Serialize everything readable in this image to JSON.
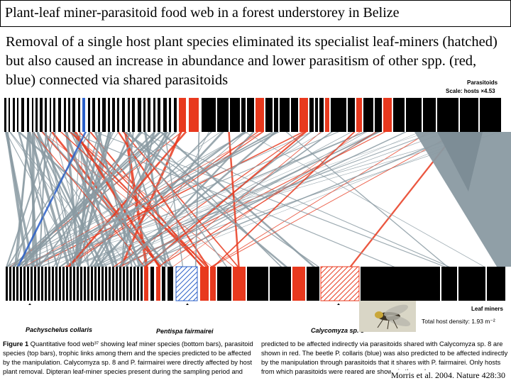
{
  "title": "Plant-leaf miner-parasitoid food web in a forest understorey in Belize",
  "subtitle": "Removal of a single host plant species eliminated its specialist leaf-miners (hatched) but also caused an increase in abundance and lower parasitism of other spp. (red, blue) connected via shared parasitoids",
  "figure": {
    "parasitoids_label": "Parasitoids",
    "scale_label": "Scale: hosts ×4.53",
    "leaf_miners_label": "Leaf miners",
    "density_label": "Total host density: 1.93 m⁻²",
    "species": [
      {
        "name": "Pachyschelus collaris"
      },
      {
        "name": "Pentispa fairmairei"
      },
      {
        "name": "Calycomyza sp. 8"
      }
    ]
  },
  "caption": {
    "lead": "Figure 1",
    "left": "Quantitative food web³⁷ showing leaf miner species (bottom bars), parasitoid species (top bars), trophic links among them and the species predicted to be affected by the manipulation. Calycomyza sp. 8 and P. fairmairei were directly affected by host plant removal. Dipteran leaf-miner species present during the sampling period and",
    "right": "predicted to be affected indirectly via parasitoids shared with Calycomyza sp. 8 are shown in red. The beetle P. collaris (blue) was also predicted to be affected indirectly by the manipulation through parasitoids that it shares with P. fairmairei. Only hosts from which parasitoids were reared are shown in the web."
  },
  "citation": "Morris et al. 2004. Nature 428:30",
  "colors": {
    "grey_link": "#8a9aa2",
    "red_link": "#e8391e",
    "blue_link": "#2a5fc8",
    "bar_black": "#000000",
    "hatched_blue": "#2a5fc8",
    "hatched_red": "#e8391e"
  }
}
